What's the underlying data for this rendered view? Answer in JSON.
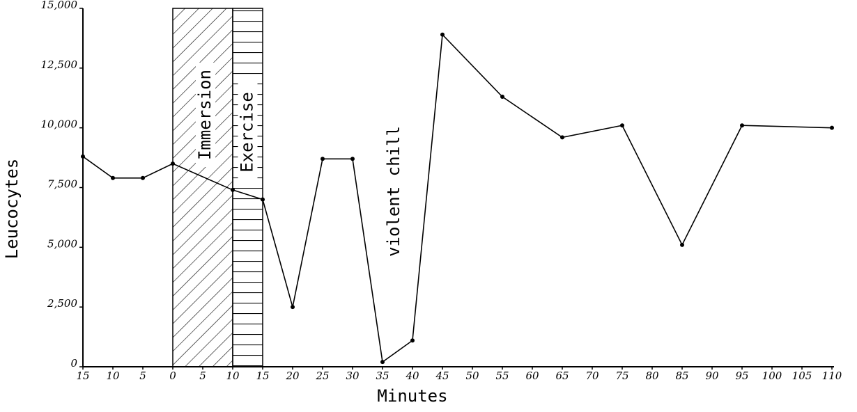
{
  "chart_data": {
    "type": "line",
    "ylabel": "Leucocytes",
    "xlabel": "Minutes",
    "xlim": [
      -15,
      110
    ],
    "ylim": [
      0,
      15000
    ],
    "xticks": [
      {
        "value": -15,
        "label": "15"
      },
      {
        "value": -10,
        "label": "10"
      },
      {
        "value": -5,
        "label": "5"
      },
      0,
      5,
      10,
      15,
      20,
      25,
      30,
      35,
      40,
      45,
      50,
      55,
      60,
      65,
      70,
      75,
      80,
      85,
      90,
      95,
      100,
      105,
      110
    ],
    "yticks": [
      0,
      {
        "value": 2500,
        "label": "2,500"
      },
      {
        "value": 5000,
        "label": "5,000"
      },
      {
        "value": 7500,
        "label": "7,500"
      },
      {
        "value": 10000,
        "label": "10,000"
      },
      {
        "value": 12500,
        "label": "12,500"
      },
      {
        "value": 15000,
        "label": "15,000"
      }
    ],
    "x": [
      -15,
      -10,
      -5,
      0,
      10,
      15,
      20,
      25,
      30,
      35,
      40,
      45,
      55,
      65,
      75,
      85,
      95,
      110
    ],
    "series": [
      {
        "color": "#000000",
        "values": [
          8800,
          7900,
          7900,
          8500,
          7400,
          7000,
          2500,
          8700,
          8700,
          200,
          1100,
          13900,
          11300,
          9600,
          10100,
          5100,
          10100,
          10000
        ]
      }
    ],
    "spans": [
      {
        "label": "Immersion",
        "x": [
          0,
          10
        ],
        "pattern": "diagonal"
      },
      {
        "label": "Exercise",
        "x": [
          10,
          15
        ],
        "pattern": "horizontal"
      }
    ],
    "annotations": [
      {
        "text": "violent chill",
        "x": 37
      }
    ]
  }
}
